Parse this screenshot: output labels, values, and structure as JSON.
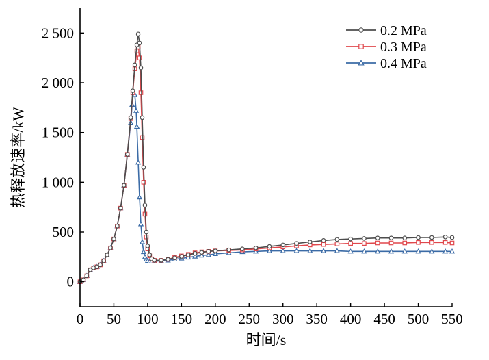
{
  "chart_data": {
    "type": "line",
    "title": "",
    "xlabel": "时间/s",
    "ylabel": "热释放速率/kW",
    "xlim": [
      0,
      550
    ],
    "ylim": [
      -250,
      2750
    ],
    "xticks": [
      0,
      50,
      100,
      150,
      200,
      250,
      300,
      350,
      400,
      450,
      500,
      550
    ],
    "xtick_labels": [
      "0",
      "50",
      "100",
      "150",
      "200",
      "250",
      "300",
      "350",
      "400",
      "450",
      "500",
      "550"
    ],
    "yticks": [
      0,
      500,
      1000,
      1500,
      2000,
      2500
    ],
    "ytick_labels": [
      "0",
      "500",
      "1 000",
      "1 500",
      "2 000",
      "2 500"
    ],
    "grid": false,
    "legend_position": "top-right",
    "series": [
      {
        "name": "0.2 MPa",
        "color": "#4d4d4d",
        "marker": "circle",
        "x": [
          0,
          5,
          10,
          15,
          20,
          25,
          30,
          35,
          40,
          45,
          50,
          55,
          60,
          65,
          70,
          75,
          78,
          81,
          84,
          86,
          88,
          90,
          92,
          94,
          96,
          98,
          100,
          103,
          106,
          110,
          120,
          130,
          140,
          150,
          160,
          170,
          180,
          190,
          200,
          220,
          240,
          260,
          280,
          300,
          320,
          340,
          360,
          380,
          400,
          420,
          440,
          460,
          480,
          500,
          520,
          540,
          550
        ],
        "y": [
          0,
          20,
          60,
          120,
          140,
          150,
          170,
          210,
          270,
          340,
          430,
          560,
          740,
          970,
          1280,
          1650,
          1920,
          2180,
          2380,
          2490,
          2400,
          2150,
          1650,
          1150,
          770,
          500,
          360,
          270,
          230,
          215,
          215,
          225,
          240,
          255,
          270,
          285,
          295,
          305,
          310,
          320,
          330,
          340,
          355,
          370,
          385,
          400,
          415,
          425,
          430,
          435,
          440,
          440,
          440,
          445,
          445,
          450,
          445
        ]
      },
      {
        "name": "0.3 MPa",
        "color": "#e0474c",
        "marker": "square",
        "x": [
          0,
          5,
          10,
          15,
          20,
          25,
          30,
          35,
          40,
          45,
          50,
          55,
          60,
          65,
          70,
          75,
          78,
          81,
          84,
          86,
          88,
          90,
          92,
          94,
          96,
          98,
          100,
          103,
          106,
          110,
          120,
          130,
          140,
          150,
          160,
          170,
          180,
          190,
          200,
          220,
          240,
          260,
          280,
          300,
          320,
          340,
          360,
          380,
          400,
          420,
          440,
          460,
          480,
          500,
          520,
          540,
          550
        ],
        "y": [
          0,
          20,
          60,
          120,
          140,
          150,
          170,
          210,
          270,
          340,
          430,
          560,
          740,
          970,
          1280,
          1640,
          1900,
          2140,
          2320,
          2360,
          2250,
          1900,
          1450,
          1000,
          680,
          450,
          330,
          260,
          230,
          215,
          215,
          225,
          245,
          260,
          275,
          290,
          300,
          305,
          310,
          315,
          320,
          330,
          340,
          350,
          360,
          370,
          375,
          380,
          385,
          385,
          390,
          390,
          390,
          395,
          395,
          395,
          390
        ]
      },
      {
        "name": "0.4 MPa",
        "color": "#3b6ba6",
        "marker": "triangle",
        "x": [
          0,
          5,
          10,
          15,
          20,
          25,
          30,
          35,
          40,
          45,
          50,
          55,
          60,
          65,
          70,
          75,
          77,
          79,
          81,
          83,
          84,
          86,
          88,
          90,
          92,
          94,
          96,
          98,
          100,
          103,
          106,
          110,
          120,
          130,
          140,
          150,
          160,
          170,
          180,
          190,
          200,
          220,
          240,
          260,
          280,
          300,
          320,
          340,
          360,
          380,
          400,
          420,
          440,
          460,
          480,
          500,
          520,
          540,
          550
        ],
        "y": [
          0,
          20,
          60,
          120,
          140,
          150,
          170,
          210,
          270,
          340,
          430,
          560,
          740,
          970,
          1280,
          1600,
          1780,
          1900,
          1880,
          1720,
          1560,
          1200,
          850,
          580,
          400,
          300,
          250,
          225,
          210,
          205,
          205,
          205,
          210,
          215,
          225,
          235,
          245,
          255,
          265,
          270,
          280,
          290,
          300,
          305,
          310,
          310,
          310,
          310,
          310,
          310,
          305,
          305,
          305,
          305,
          305,
          305,
          305,
          305,
          305
        ]
      }
    ]
  }
}
